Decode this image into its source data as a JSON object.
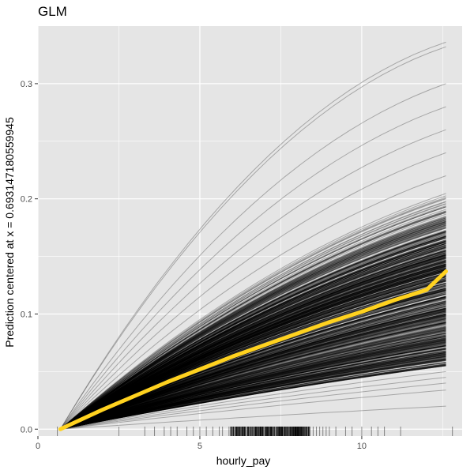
{
  "chart_data": {
    "type": "line",
    "title": "GLM",
    "xlabel": "hourly_pay",
    "ylabel": "Prediction centered at x = 0.693147180559945",
    "xlim": [
      0,
      13.1
    ],
    "ylim": [
      -0.006,
      0.35
    ],
    "x_ticks": [
      0,
      5,
      10
    ],
    "x_tick_labels": [
      "0",
      "5",
      "10"
    ],
    "y_ticks": [
      0.0,
      0.1,
      0.2,
      0.3
    ],
    "y_tick_labels": [
      "0.0",
      "0.1",
      "0.2",
      "0.3"
    ],
    "grid": true,
    "background": "#e5e5e5",
    "grid_color": "#ffffff",
    "ice_line_color": "#000000",
    "pdp_color": "#ffd21f",
    "x_start": 0.693147180559945,
    "x_end": 12.6,
    "series": [
      {
        "kind": "centered-ice-lines",
        "count": 800,
        "end_values": [
          0.02,
          0.3,
          0.034,
          0.336,
          0.332,
          0.04,
          0.045,
          0.05,
          0.06,
          0.28,
          0.26,
          0.24,
          0.22,
          0.2,
          0.18,
          0.16,
          0.14,
          0.12,
          0.1,
          0.08
        ]
      },
      {
        "kind": "partial-dependence",
        "x": [
          0.693147180559945,
          1,
          2,
          3,
          4,
          5,
          6,
          7,
          8,
          9,
          10,
          11,
          12,
          12.6
        ],
        "values": [
          0.0,
          0.004,
          0.017,
          0.029,
          0.041,
          0.052,
          0.063,
          0.073,
          0.083,
          0.093,
          0.102,
          0.112,
          0.121,
          0.137
        ]
      }
    ],
    "rug_x": [
      0.6,
      2.5,
      3.3,
      3.6,
      3.9,
      4.1,
      4.3,
      4.6,
      4.8,
      5.0,
      5.2,
      5.4,
      5.6,
      5.7,
      5.9,
      6.0,
      6.1,
      6.2,
      6.3,
      6.4,
      6.5,
      6.6,
      6.7,
      6.8,
      6.9,
      7.0,
      7.1,
      7.2,
      7.3,
      7.4,
      7.5,
      7.6,
      7.7,
      7.8,
      7.9,
      8.0,
      8.1,
      8.2,
      8.3,
      8.4,
      8.5,
      8.6,
      8.7,
      8.8,
      8.9,
      9.0,
      9.2,
      9.5,
      9.7,
      10.0,
      10.3,
      10.5,
      10.7,
      11.2,
      12.8
    ]
  }
}
